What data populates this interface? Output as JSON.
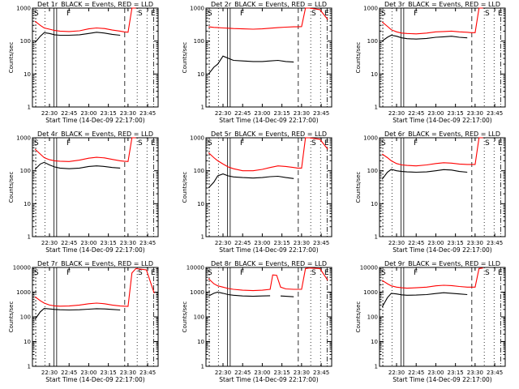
{
  "chart_data": [
    {
      "type": "line",
      "title": "Det 1r_BLACK = Events, RED = LLD",
      "xlabel": "Start Time (14-Dec-09 22:17:00)",
      "ylabel": "Counts/sec",
      "yscale": "log",
      "ylim": [
        1,
        1000
      ],
      "ytick_labels": [
        "1",
        "10",
        "100",
        "1000"
      ],
      "xlim": [
        "22:17:00",
        "23:53:00"
      ],
      "xtick_labels": [
        "22:30",
        "22:45",
        "23:00",
        "23:15",
        "23:30",
        "23:45"
      ],
      "markers": [
        "S",
        "F",
        "S",
        "E"
      ],
      "x": [
        "22:19",
        "22:23",
        "22:26",
        "22:30",
        "22:34",
        "22:38",
        "22:45",
        "22:53",
        "23:00",
        "23:06",
        "23:12",
        "23:18",
        "23:24",
        "23:27",
        "23:30",
        "23:33",
        "23:36"
      ],
      "series": [
        {
          "color": "#ff0000",
          "values": [
            400,
            300,
            250,
            230,
            210,
            200,
            195,
            205,
            235,
            250,
            240,
            215,
            200,
            190,
            185,
            1000,
            1000
          ]
        },
        {
          "color": "#000000",
          "values": [
            90,
            140,
            180,
            170,
            155,
            150,
            150,
            155,
            170,
            185,
            175,
            160,
            150,
            null,
            null,
            null,
            null
          ]
        }
      ]
    },
    {
      "type": "line",
      "title": "Det 2r_BLACK = Events, RED = LLD",
      "xlabel": "Start Time (14-Dec-09 22:17:00)",
      "ylabel": "Counts/sec",
      "yscale": "log",
      "ylim": [
        1,
        1000
      ],
      "ytick_labels": [
        "1",
        "10",
        "100",
        "1000"
      ],
      "xlim": [
        "22:17:00",
        "23:53:00"
      ],
      "xtick_labels": [
        "22:30",
        "22:45",
        "23:00",
        "23:15",
        "23:30",
        "23:45"
      ],
      "markers": [
        "S",
        "F",
        "S",
        "E"
      ],
      "x": [
        "22:19",
        "22:23",
        "22:26",
        "22:30",
        "22:34",
        "22:38",
        "22:45",
        "22:53",
        "23:00",
        "23:06",
        "23:12",
        "23:18",
        "23:24",
        "23:27",
        "23:30",
        "23:33",
        "23:36",
        "23:44",
        "23:50"
      ],
      "series": [
        {
          "color": "#ff0000",
          "values": [
            270,
            260,
            255,
            250,
            245,
            240,
            235,
            230,
            235,
            245,
            255,
            265,
            270,
            270,
            275,
            1000,
            1000,
            900,
            450
          ]
        },
        {
          "color": "#000000",
          "values": [
            10,
            16,
            20,
            35,
            30,
            26,
            25,
            24,
            24,
            25,
            26,
            24,
            23,
            null,
            null,
            null,
            null,
            null,
            null
          ]
        }
      ]
    },
    {
      "type": "line",
      "title": "Det 3r_BLACK = Events, RED = LLD",
      "xlabel": "Start Time (14-Dec-09 22:17:00)",
      "ylabel": "Counts/sec",
      "yscale": "log",
      "ylim": [
        1,
        1000
      ],
      "ytick_labels": [
        "1",
        "10",
        "100",
        "1000"
      ],
      "xlim": [
        "22:17:00",
        "23:53:00"
      ],
      "xtick_labels": [
        "22:30",
        "22:45",
        "23:00",
        "23:15",
        "23:30",
        "23:45"
      ],
      "markers": [
        "S",
        "F",
        "S",
        "E"
      ],
      "x": [
        "22:19",
        "22:23",
        "22:26",
        "22:30",
        "22:34",
        "22:38",
        "22:45",
        "22:53",
        "23:00",
        "23:06",
        "23:12",
        "23:18",
        "23:24",
        "23:27",
        "23:30",
        "23:33",
        "23:36"
      ],
      "series": [
        {
          "color": "#ff0000",
          "values": [
            380,
            280,
            220,
            190,
            175,
            170,
            165,
            175,
            190,
            195,
            200,
            190,
            185,
            180,
            180,
            1000,
            1000
          ]
        },
        {
          "color": "#000000",
          "values": [
            100,
            130,
            150,
            140,
            125,
            118,
            115,
            120,
            130,
            135,
            140,
            130,
            125,
            null,
            null,
            null,
            null
          ]
        }
      ]
    },
    {
      "type": "line",
      "title": "Det 4r_BLACK = Events, RED = LLD",
      "xlabel": "Start Time (14-Dec-09 22:17:00)",
      "ylabel": "Counts/sec",
      "yscale": "log",
      "ylim": [
        1,
        1000
      ],
      "ytick_labels": [
        "1",
        "10",
        "100",
        "1000"
      ],
      "xlim": [
        "22:17:00",
        "23:53:00"
      ],
      "xtick_labels": [
        "22:30",
        "22:45",
        "23:00",
        "23:15",
        "23:30",
        "23:45"
      ],
      "markers": [
        "S",
        "F",
        "S",
        "E"
      ],
      "x": [
        "22:19",
        "22:23",
        "22:26",
        "22:30",
        "22:34",
        "22:38",
        "22:45",
        "22:53",
        "23:00",
        "23:06",
        "23:12",
        "23:18",
        "23:24",
        "23:27",
        "23:30",
        "23:33",
        "23:36"
      ],
      "series": [
        {
          "color": "#ff0000",
          "values": [
            450,
            320,
            250,
            215,
            200,
            195,
            190,
            210,
            240,
            255,
            245,
            220,
            200,
            195,
            190,
            1000,
            1000
          ]
        },
        {
          "color": "#000000",
          "values": [
            110,
            160,
            180,
            150,
            130,
            120,
            115,
            120,
            135,
            140,
            135,
            125,
            120,
            null,
            null,
            null,
            null
          ]
        }
      ]
    },
    {
      "type": "line",
      "title": "Det 5r_BLACK = Events, RED = LLD",
      "xlabel": "Start Time (14-Dec-09 22:17:00)",
      "ylabel": "Counts/sec",
      "yscale": "log",
      "ylim": [
        1,
        1000
      ],
      "ytick_labels": [
        "1",
        "10",
        "100",
        "1000"
      ],
      "xlim": [
        "22:17:00",
        "23:53:00"
      ],
      "xtick_labels": [
        "22:30",
        "22:45",
        "23:00",
        "23:15",
        "23:30",
        "23:45"
      ],
      "markers": [
        "S",
        "F",
        "S",
        "E"
      ],
      "x": [
        "22:19",
        "22:23",
        "22:26",
        "22:30",
        "22:34",
        "22:38",
        "22:45",
        "22:53",
        "23:00",
        "23:06",
        "23:12",
        "23:18",
        "23:24",
        "23:27",
        "23:30",
        "23:33",
        "23:36",
        "23:44",
        "23:50"
      ],
      "series": [
        {
          "color": "#ff0000",
          "values": [
            350,
            250,
            200,
            160,
            130,
            115,
            100,
            100,
            110,
            125,
            140,
            135,
            125,
            120,
            120,
            1000,
            1000,
            900,
            450
          ]
        },
        {
          "color": "#000000",
          "values": [
            30,
            45,
            70,
            80,
            70,
            65,
            62,
            60,
            62,
            66,
            68,
            62,
            58,
            null,
            null,
            null,
            null,
            null,
            null
          ]
        }
      ]
    },
    {
      "type": "line",
      "title": "Det 6r_BLACK = Events, RED = LLD",
      "xlabel": "Start Time (14-Dec-09 22:17:00)",
      "ylabel": "Counts/sec",
      "yscale": "log",
      "ylim": [
        1,
        1000
      ],
      "ytick_labels": [
        "1",
        "10",
        "100",
        "1000"
      ],
      "xlim": [
        "22:17:00",
        "23:53:00"
      ],
      "xtick_labels": [
        "22:30",
        "22:45",
        "23:00",
        "23:15",
        "23:30",
        "23:45"
      ],
      "markers": [
        "S",
        "F",
        "S",
        "E"
      ],
      "x": [
        "22:19",
        "22:23",
        "22:26",
        "22:30",
        "22:34",
        "22:38",
        "22:45",
        "22:53",
        "23:00",
        "23:06",
        "23:12",
        "23:18",
        "23:24",
        "23:27",
        "23:30",
        "23:33",
        "23:36"
      ],
      "series": [
        {
          "color": "#ff0000",
          "values": [
            320,
            250,
            200,
            165,
            150,
            145,
            140,
            150,
            165,
            175,
            170,
            160,
            155,
            155,
            155,
            1000,
            1000
          ]
        },
        {
          "color": "#000000",
          "values": [
            55,
            90,
            110,
            100,
            95,
            92,
            90,
            92,
            100,
            108,
            105,
            95,
            90,
            null,
            null,
            null,
            null
          ]
        }
      ]
    },
    {
      "type": "line",
      "title": "Det 7r_BLACK = Events, RED = LLD",
      "xlabel": "Start Time (14-Dec-09 22:17:00)",
      "ylabel": "Counts/sec",
      "yscale": "log",
      "ylim": [
        1,
        10000
      ],
      "ytick_labels": [
        "1",
        "10",
        "100",
        "1000",
        "10000"
      ],
      "xlim": [
        "22:17:00",
        "23:53:00"
      ],
      "xtick_labels": [
        "22:30",
        "22:45",
        "23:00",
        "23:15",
        "23:30",
        "23:45"
      ],
      "markers": [
        "S",
        "F",
        "S",
        "E"
      ],
      "x": [
        "22:19",
        "22:23",
        "22:26",
        "22:30",
        "22:34",
        "22:38",
        "22:45",
        "22:53",
        "23:00",
        "23:06",
        "23:12",
        "23:18",
        "23:24",
        "23:27",
        "23:30",
        "23:33",
        "23:36",
        "23:44",
        "23:50"
      ],
      "series": [
        {
          "color": "#ff0000",
          "values": [
            650,
            450,
            360,
            300,
            280,
            270,
            275,
            300,
            340,
            360,
            340,
            300,
            275,
            270,
            265,
            6000,
            9000,
            8000,
            900
          ]
        },
        {
          "color": "#000000",
          "values": [
            80,
            160,
            220,
            210,
            200,
            195,
            190,
            195,
            205,
            215,
            210,
            200,
            190,
            null,
            null,
            null,
            null,
            null,
            null
          ]
        }
      ]
    },
    {
      "type": "line",
      "title": "Det 8r_BLACK = Events, RED = LLD",
      "xlabel": "Start Time (14-Dec-09 22:17:00)",
      "ylabel": "Counts/sec",
      "yscale": "log",
      "ylim": [
        1,
        10000
      ],
      "ytick_labels": [
        "1",
        "10",
        "100",
        "1000",
        "10000"
      ],
      "xlim": [
        "22:17:00",
        "23:53:00"
      ],
      "xtick_labels": [
        "22:30",
        "22:45",
        "23:00",
        "23:15",
        "23:30",
        "23:45"
      ],
      "markers": [
        "S",
        "F",
        "S",
        "E"
      ],
      "x": [
        "22:19",
        "22:23",
        "22:26",
        "22:30",
        "22:34",
        "22:38",
        "22:45",
        "22:53",
        "23:00",
        "23:06",
        "23:08",
        "23:11",
        "23:14",
        "23:18",
        "23:24",
        "23:27",
        "23:30",
        "23:33",
        "23:36",
        "23:44",
        "23:50"
      ],
      "series": [
        {
          "color": "#ff0000",
          "values": [
            3500,
            2200,
            1800,
            1600,
            1400,
            1300,
            1200,
            1150,
            1200,
            1300,
            5000,
            4800,
            1600,
            1350,
            1300,
            1300,
            1300,
            9000,
            9500,
            9000,
            3000
          ]
        },
        {
          "color": "#000000",
          "values": [
            700,
            900,
            1000,
            900,
            800,
            750,
            700,
            680,
            700,
            720,
            null,
            null,
            700,
            680,
            650,
            null,
            null,
            null,
            null,
            null,
            null
          ]
        }
      ]
    },
    {
      "type": "line",
      "title": "Det 9r_BLACK = Events, RED = LLD",
      "xlabel": "Start Time (14-Dec-09 22:17:00)",
      "ylabel": "Counts/sec",
      "yscale": "log",
      "ylim": [
        1,
        10000
      ],
      "ytick_labels": [
        "1",
        "10",
        "100",
        "1000",
        "10000"
      ],
      "xlim": [
        "22:17:00",
        "23:53:00"
      ],
      "xtick_labels": [
        "22:30",
        "22:45",
        "23:00",
        "23:15",
        "23:30",
        "23:45"
      ],
      "markers": [
        "S",
        "F",
        "S",
        "E"
      ],
      "x": [
        "22:19",
        "22:23",
        "22:26",
        "22:30",
        "22:34",
        "22:38",
        "22:45",
        "22:53",
        "23:00",
        "23:06",
        "23:12",
        "23:18",
        "23:24",
        "23:27",
        "23:30",
        "23:33",
        "23:36"
      ],
      "series": [
        {
          "color": "#ff0000",
          "values": [
            3000,
            2200,
            1800,
            1600,
            1500,
            1450,
            1500,
            1600,
            1800,
            1900,
            1850,
            1700,
            1600,
            1600,
            1600,
            9000,
            9500
          ]
        },
        {
          "color": "#000000",
          "values": [
            250,
            600,
            900,
            850,
            780,
            750,
            760,
            800,
            880,
            950,
            900,
            850,
            800,
            null,
            null,
            null,
            null
          ]
        }
      ]
    }
  ]
}
